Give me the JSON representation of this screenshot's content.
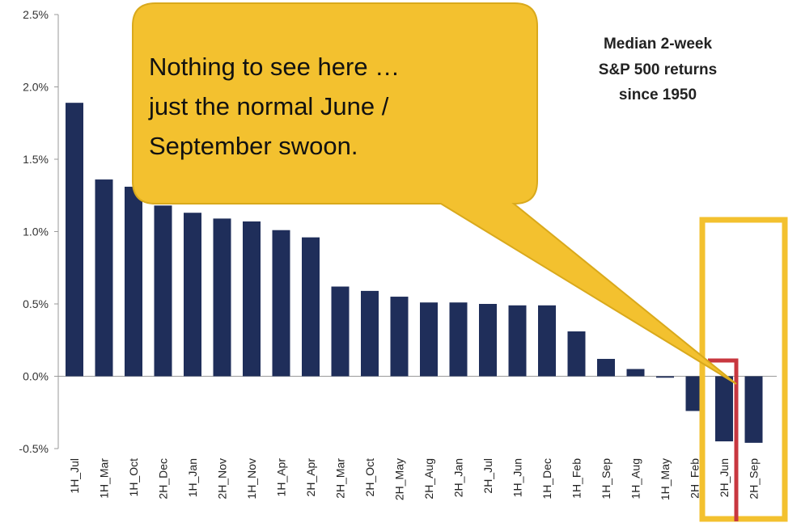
{
  "chart_data": {
    "type": "bar",
    "title_lines": [
      "Median 2-week",
      "S&P 500 returns",
      "since 1950"
    ],
    "y_tick_labels": [
      "2.5%",
      "2.0%",
      "1.5%",
      "1.0%",
      "0.5%",
      "0.0%",
      "-0.5%"
    ],
    "y_ticks": [
      2.5,
      2.0,
      1.5,
      1.0,
      0.5,
      0.0,
      -0.5
    ],
    "ylim": [
      -0.5,
      2.5
    ],
    "categories": [
      "1H_Jul",
      "1H_Mar",
      "1H_Oct",
      "2H_Dec",
      "1H_Jan",
      "2H_Nov",
      "1H_Nov",
      "1H_Apr",
      "2H_Apr",
      "2H_Mar",
      "2H_Oct",
      "2H_May",
      "2H_Aug",
      "2H_Jan",
      "2H_Jul",
      "1H_Jun",
      "1H_Dec",
      "1H_Feb",
      "1H_Sep",
      "1H_Aug",
      "1H_May",
      "2H_Feb",
      "2H_Jun",
      "2H_Sep"
    ],
    "values": [
      1.89,
      1.36,
      1.31,
      1.18,
      1.13,
      1.09,
      1.07,
      1.01,
      0.96,
      0.62,
      0.59,
      0.55,
      0.51,
      0.51,
      0.5,
      0.49,
      0.49,
      0.31,
      0.12,
      0.05,
      -0.01,
      -0.24,
      -0.45,
      -0.46
    ],
    "bar_color": "#1f2e5a",
    "grid": false,
    "callout": {
      "lines": [
        "Nothing to see here …",
        "just the normal June /",
        "September swoon."
      ],
      "fill_color": "#f3c12f"
    },
    "highlight_color": "#f3c12f",
    "marker_color": "#c8373f"
  }
}
